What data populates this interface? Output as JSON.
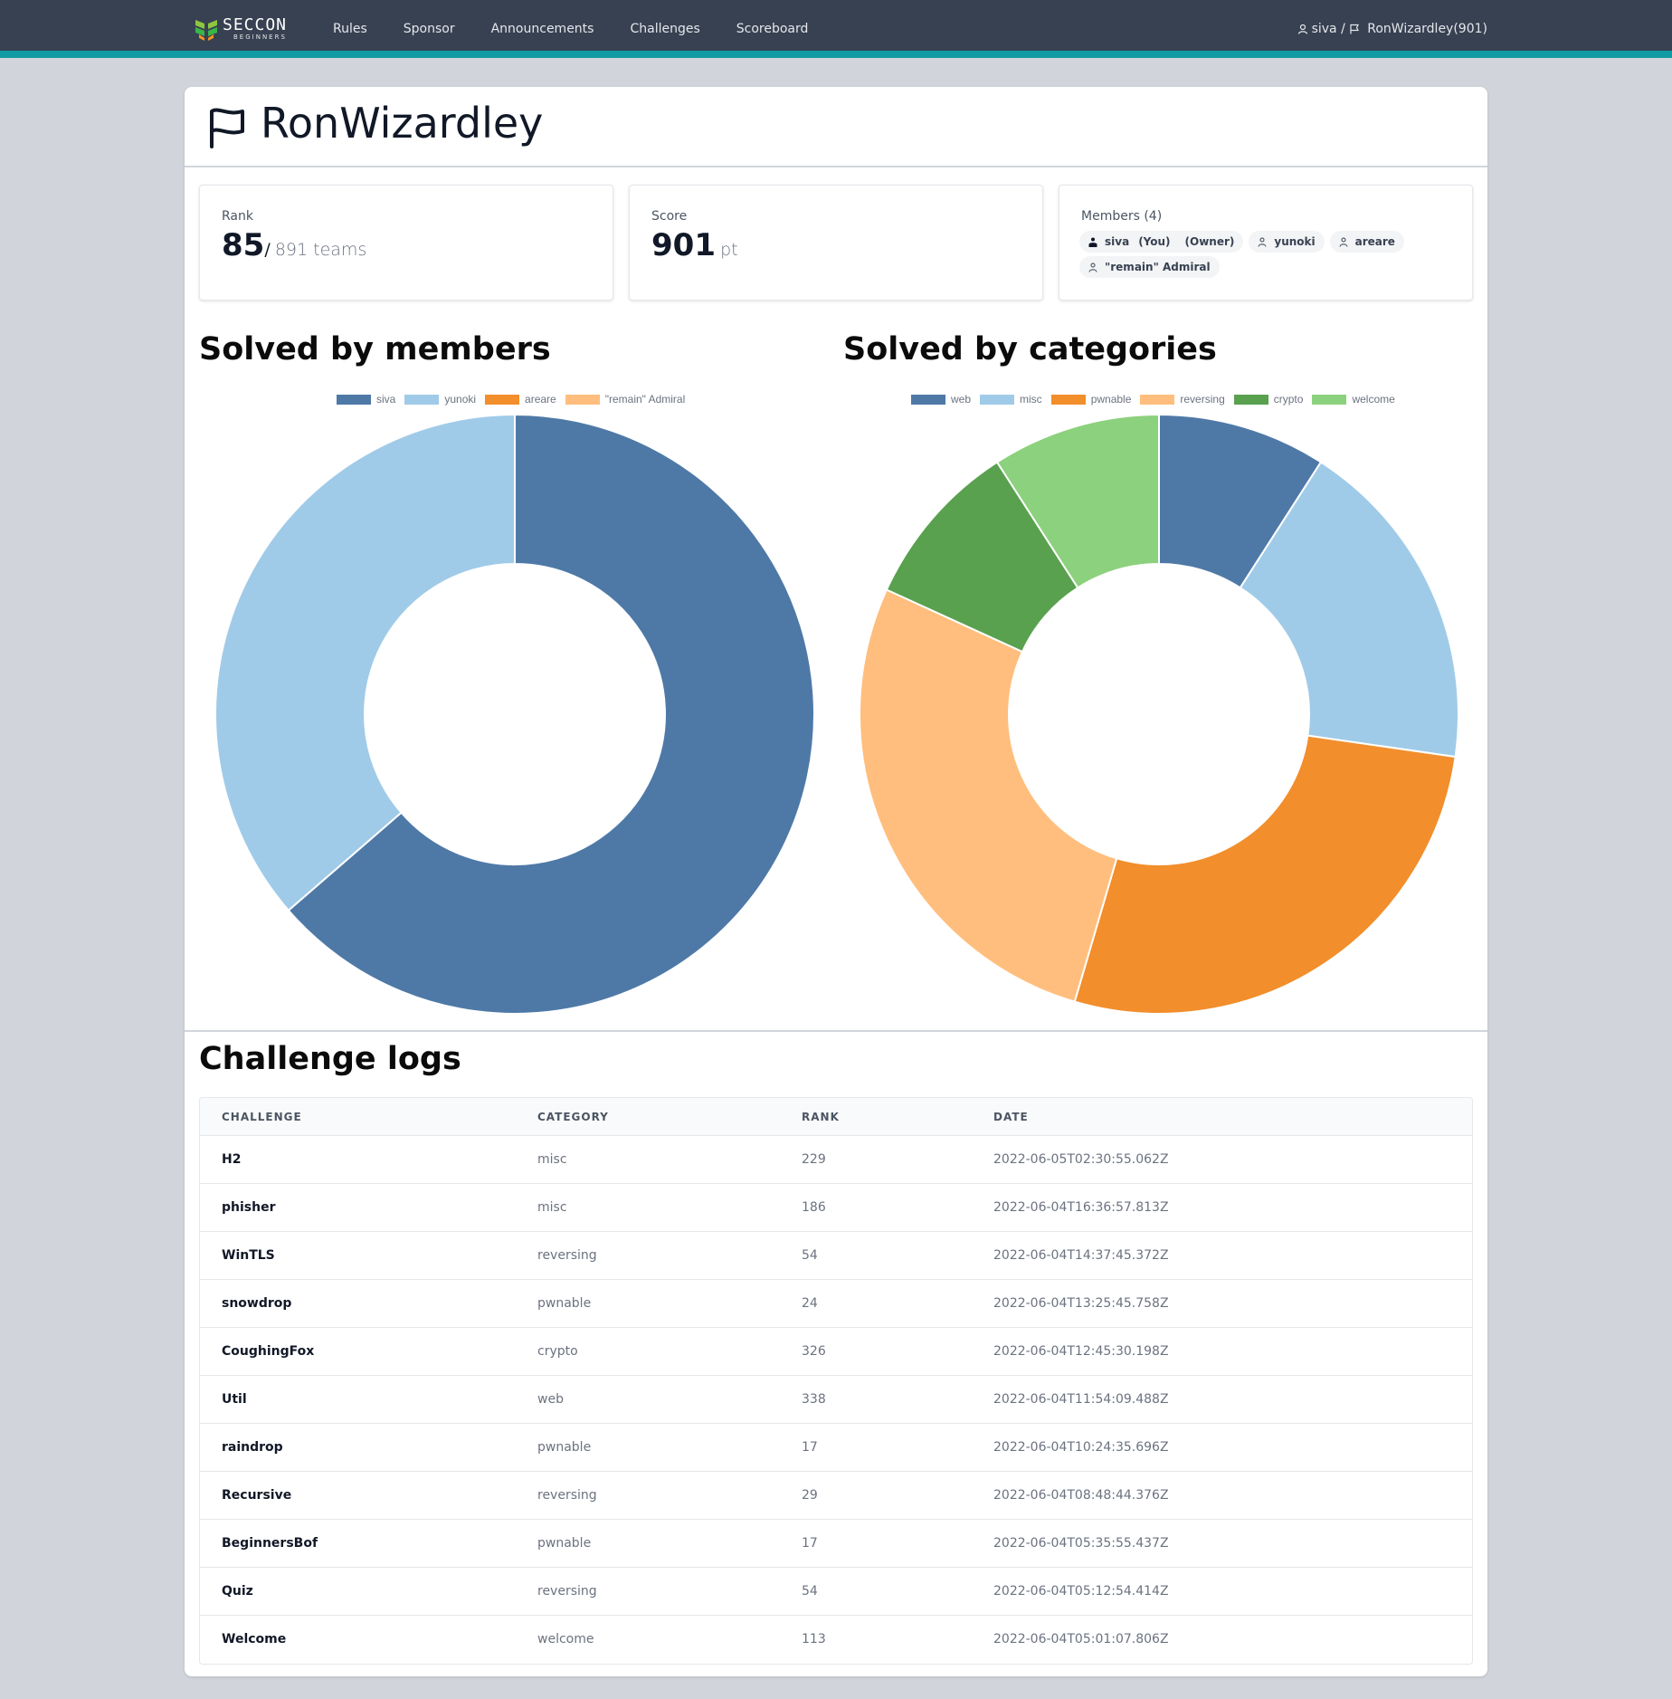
{
  "nav": {
    "logo_text": "SECCON",
    "logo_sub": "BEGINNERS",
    "links": [
      "Rules",
      "Sponsor",
      "Announcements",
      "Challenges",
      "Scoreboard"
    ],
    "user_name": "siva",
    "team_label": "RonWizardley(901)"
  },
  "team": {
    "name": "RonWizardley"
  },
  "rank": {
    "label": "Rank",
    "value": "85",
    "separator": "/",
    "total": "891 teams"
  },
  "score": {
    "label": "Score",
    "value": "901",
    "unit": "pt"
  },
  "members": {
    "label": "Members (4)",
    "items": [
      {
        "name": "siva",
        "you": "(You)",
        "role": "(Owner)"
      },
      {
        "name": "yunoki"
      },
      {
        "name": "areare"
      },
      {
        "name": "\"remain\" Admiral"
      }
    ]
  },
  "sections": {
    "members_chart_title": "Solved by members",
    "categories_chart_title": "Solved by categories",
    "logs_title": "Challenge logs"
  },
  "chart_data": [
    {
      "type": "pie",
      "title": "Solved by members",
      "legend": "top",
      "labels": [
        "siva",
        "yunoki",
        "areare",
        "\"remain\" Admiral"
      ],
      "values": [
        7,
        4,
        0,
        0
      ],
      "colors": [
        "#4e79a7",
        "#a0cbe8",
        "#f28e2b",
        "#ffbe7d"
      ]
    },
    {
      "type": "pie",
      "title": "Solved by categories",
      "legend": "top",
      "labels": [
        "web",
        "misc",
        "pwnable",
        "reversing",
        "crypto",
        "welcome"
      ],
      "values": [
        1,
        2,
        3,
        3,
        1,
        1
      ],
      "colors": [
        "#4e79a7",
        "#a0cbe8",
        "#f28e2b",
        "#ffbe7d",
        "#59a14f",
        "#8cd17d"
      ]
    }
  ],
  "logs": {
    "columns": [
      "CHALLENGE",
      "CATEGORY",
      "RANK",
      "DATE"
    ],
    "rows": [
      [
        "H2",
        "misc",
        "229",
        "2022-06-05T02:30:55.062Z"
      ],
      [
        "phisher",
        "misc",
        "186",
        "2022-06-04T16:36:57.813Z"
      ],
      [
        "WinTLS",
        "reversing",
        "54",
        "2022-06-04T14:37:45.372Z"
      ],
      [
        "snowdrop",
        "pwnable",
        "24",
        "2022-06-04T13:25:45.758Z"
      ],
      [
        "CoughingFox",
        "crypto",
        "326",
        "2022-06-04T12:45:30.198Z"
      ],
      [
        "Util",
        "web",
        "338",
        "2022-06-04T11:54:09.488Z"
      ],
      [
        "raindrop",
        "pwnable",
        "17",
        "2022-06-04T10:24:35.696Z"
      ],
      [
        "Recursive",
        "reversing",
        "29",
        "2022-06-04T08:48:44.376Z"
      ],
      [
        "BeginnersBof",
        "pwnable",
        "17",
        "2022-06-04T05:35:55.437Z"
      ],
      [
        "Quiz",
        "reversing",
        "54",
        "2022-06-04T05:12:54.414Z"
      ],
      [
        "Welcome",
        "welcome",
        "113",
        "2022-06-04T05:01:07.806Z"
      ]
    ]
  }
}
